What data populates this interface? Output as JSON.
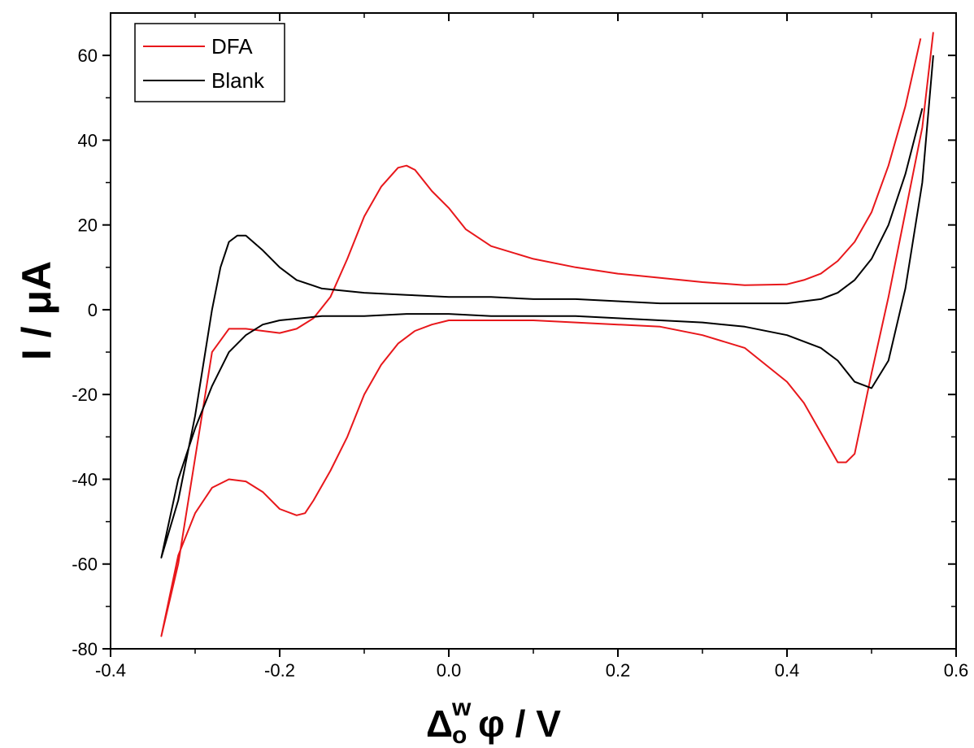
{
  "chart_data": {
    "type": "line",
    "xlabel_main": "Δ",
    "xlabel_sup": "w",
    "xlabel_sub": "o",
    "xlabel_rest": "φ / V",
    "ylabel": "I / μA",
    "xlim": [
      -0.4,
      0.6
    ],
    "ylim": [
      -80,
      70
    ],
    "x_ticks": [
      -0.4,
      -0.2,
      0.0,
      0.2,
      0.4,
      0.6
    ],
    "x_tick_labels": [
      "-0.4",
      "-0.2",
      "0.0",
      "0.2",
      "0.4",
      "0.6"
    ],
    "y_ticks": [
      -80,
      -60,
      -40,
      -20,
      0,
      20,
      40,
      60
    ],
    "y_tick_labels": [
      "-80",
      "-60",
      "-40",
      "-20",
      "0",
      "20",
      "40",
      "60"
    ],
    "legend_position": "top-left",
    "grid": false,
    "series": [
      {
        "name": "DFA",
        "color": "#e8171b",
        "x": [
          0.558,
          0.54,
          0.52,
          0.5,
          0.48,
          0.46,
          0.44,
          0.42,
          0.4,
          0.35,
          0.3,
          0.25,
          0.2,
          0.15,
          0.1,
          0.05,
          0.02,
          0.0,
          -0.02,
          -0.04,
          -0.05,
          -0.06,
          -0.08,
          -0.1,
          -0.12,
          -0.14,
          -0.16,
          -0.18,
          -0.2,
          -0.22,
          -0.24,
          -0.26,
          -0.28,
          -0.3,
          -0.32,
          -0.34,
          -0.32,
          -0.3,
          -0.28,
          -0.26,
          -0.24,
          -0.22,
          -0.2,
          -0.18,
          -0.17,
          -0.16,
          -0.14,
          -0.12,
          -0.1,
          -0.08,
          -0.06,
          -0.04,
          -0.02,
          0.0,
          0.05,
          0.1,
          0.15,
          0.2,
          0.25,
          0.3,
          0.35,
          0.4,
          0.42,
          0.44,
          0.46,
          0.47,
          0.48,
          0.5,
          0.52,
          0.54,
          0.56,
          0.573
        ],
        "y": [
          64,
          48,
          34,
          23,
          16,
          11.5,
          8.5,
          7,
          6,
          5.8,
          6.5,
          7.5,
          8.5,
          10,
          12,
          15,
          19,
          24,
          28,
          33,
          34,
          33.5,
          29,
          22,
          12,
          3,
          -2,
          -4.5,
          -5.5,
          -5,
          -4.5,
          -4.5,
          -10,
          -35,
          -60,
          -77,
          -58,
          -48,
          -42,
          -40,
          -40.5,
          -43,
          -47,
          -48.5,
          -48,
          -45,
          -38,
          -30,
          -20,
          -13,
          -8,
          -5,
          -3.5,
          -2.5,
          -2.5,
          -2.5,
          -3,
          -3.5,
          -4,
          -6,
          -9,
          -17,
          -22,
          -29,
          -36,
          -36,
          -34,
          -15,
          3,
          23,
          43,
          65.5
        ]
      },
      {
        "name": "Blank",
        "color": "#000000",
        "x": [
          0.56,
          0.54,
          0.52,
          0.5,
          0.48,
          0.46,
          0.44,
          0.42,
          0.4,
          0.35,
          0.3,
          0.25,
          0.2,
          0.15,
          0.1,
          0.05,
          0.0,
          -0.05,
          -0.1,
          -0.15,
          -0.18,
          -0.2,
          -0.22,
          -0.24,
          -0.25,
          -0.26,
          -0.27,
          -0.28,
          -0.3,
          -0.32,
          -0.34,
          -0.32,
          -0.3,
          -0.28,
          -0.26,
          -0.24,
          -0.22,
          -0.2,
          -0.15,
          -0.1,
          -0.05,
          0.0,
          0.05,
          0.1,
          0.15,
          0.2,
          0.25,
          0.3,
          0.35,
          0.4,
          0.44,
          0.46,
          0.48,
          0.5,
          0.52,
          0.54,
          0.56,
          0.573
        ],
        "y": [
          47.5,
          32,
          20,
          12,
          7,
          4,
          2.5,
          2,
          1.5,
          1.5,
          1.5,
          1.5,
          2,
          2.5,
          2.5,
          3,
          3,
          3.5,
          4,
          5,
          7,
          10,
          14,
          17.5,
          17.5,
          16,
          10,
          0,
          -25,
          -45,
          -58.5,
          -40,
          -28,
          -18,
          -10,
          -6,
          -3.5,
          -2.5,
          -1.5,
          -1.5,
          -1,
          -1,
          -1.5,
          -1.5,
          -1.5,
          -2,
          -2.5,
          -3,
          -4,
          -6,
          -9,
          -12,
          -17,
          -18.5,
          -12,
          5,
          30,
          60
        ]
      }
    ]
  }
}
